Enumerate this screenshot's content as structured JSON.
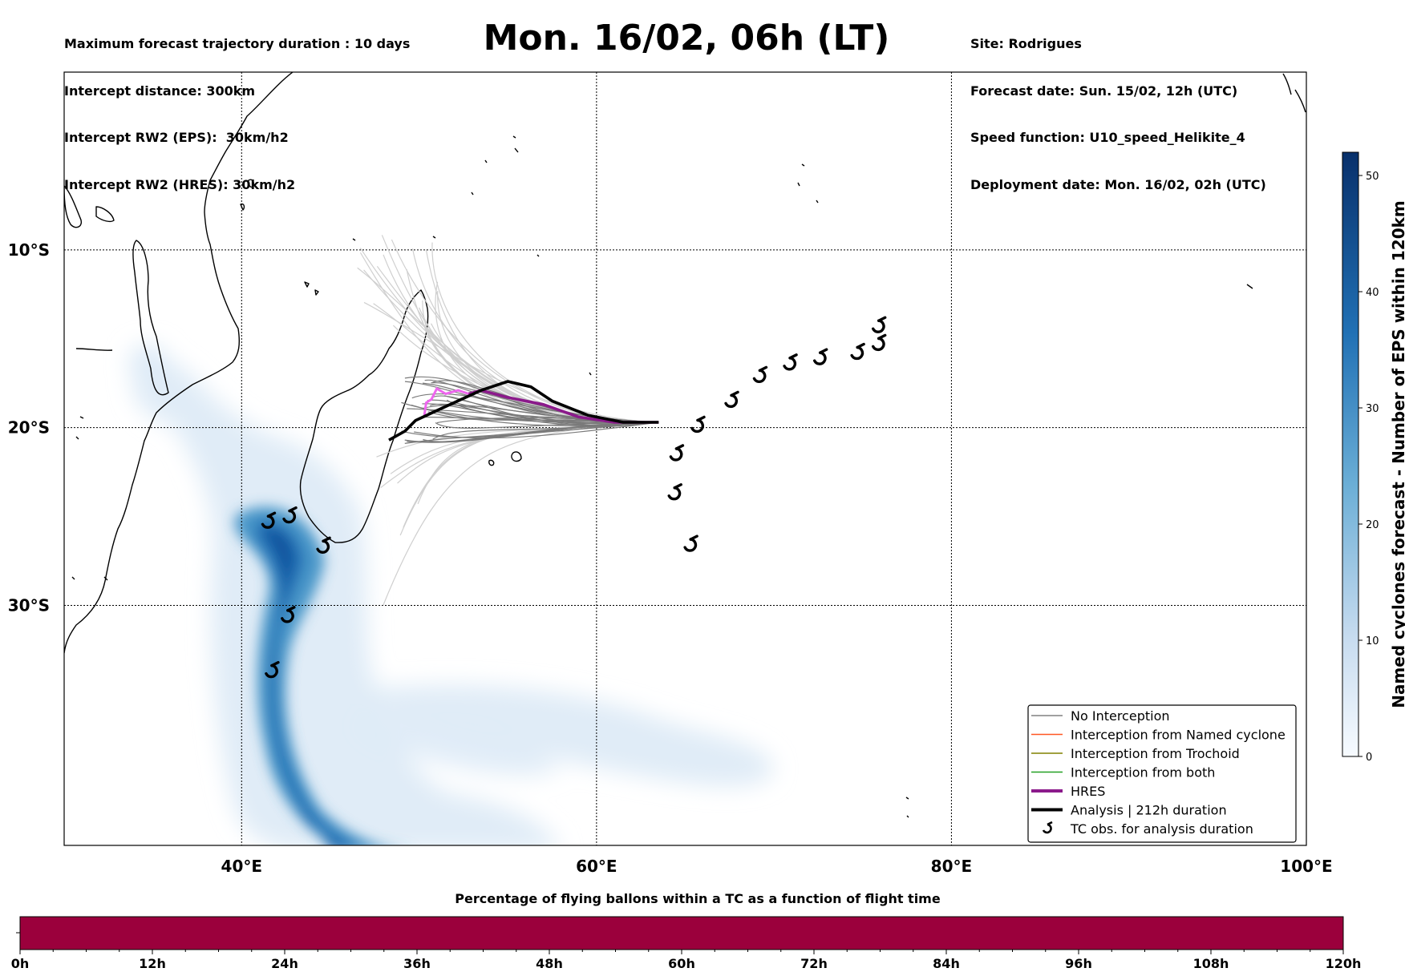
{
  "header": {
    "left": [
      "Maximum forecast trajectory duration : 10 days",
      "Intercept distance: 300km",
      "Intercept RW2 (EPS):  30km/h2",
      "Intercept RW2 (HRES): 30km/h2"
    ],
    "title": "Mon. 16/02, 06h (LT)",
    "right": [
      "Site: Rodrigues",
      "Forecast date: Sun. 15/02, 12h (UTC)",
      "Speed function: U10_speed_Helikite_4",
      "Deployment date: Mon. 16/02, 02h (UTC)"
    ]
  },
  "map": {
    "lon_range": [
      30,
      100
    ],
    "lat_range": [
      -43.5,
      0
    ],
    "lon_ticks": [
      {
        "value": 40,
        "label": "40°E"
      },
      {
        "value": 60,
        "label": "60°E"
      },
      {
        "value": 80,
        "label": "80°E"
      },
      {
        "value": 100,
        "label": "100°E"
      }
    ],
    "lat_ticks": [
      {
        "value": -10,
        "label": "10°S"
      },
      {
        "value": -20,
        "label": "20°S"
      },
      {
        "value": -30,
        "label": "30°S"
      }
    ],
    "grid": true,
    "colors": {
      "eps": "#7a7a7a",
      "eps_light": "#cfcfcf",
      "hres": "#8b1a8b",
      "hres_early": "#ee66ee",
      "analysis": "#000000",
      "density": "#08306b"
    }
  },
  "legend": {
    "placement": "bottom-right",
    "items": [
      {
        "label": "No Interception",
        "color": "#808080",
        "kind": "line"
      },
      {
        "label": "Interception from Named cyclone",
        "color": "#ff5722",
        "kind": "line"
      },
      {
        "label": "Interception from Trochoid",
        "color": "#808000",
        "kind": "line"
      },
      {
        "label": "Interception from both",
        "color": "#22a022",
        "kind": "line"
      },
      {
        "label": "HRES",
        "color": "#8b1a8b",
        "kind": "thick"
      },
      {
        "label": "Analysis | 212h duration",
        "color": "#000000",
        "kind": "thick"
      },
      {
        "label": "TC obs. for analysis duration",
        "color": "#000000",
        "kind": "marker"
      }
    ]
  },
  "tc_markers": [
    {
      "lon": 41.5,
      "lat": -25.3
    },
    {
      "lon": 42.7,
      "lat": -25.0
    },
    {
      "lon": 44.6,
      "lat": -26.7
    },
    {
      "lon": 42.6,
      "lat": -30.6
    },
    {
      "lon": 41.7,
      "lat": -33.7
    },
    {
      "lon": 65.3,
      "lat": -26.6
    },
    {
      "lon": 64.4,
      "lat": -23.7
    },
    {
      "lon": 64.5,
      "lat": -21.5
    },
    {
      "lon": 65.7,
      "lat": -19.9
    },
    {
      "lon": 67.6,
      "lat": -18.5
    },
    {
      "lon": 69.2,
      "lat": -17.1
    },
    {
      "lon": 70.9,
      "lat": -16.4
    },
    {
      "lon": 72.6,
      "lat": -16.1
    },
    {
      "lon": 74.7,
      "lat": -15.8
    },
    {
      "lon": 75.9,
      "lat": -15.3
    },
    {
      "lon": 75.9,
      "lat": -14.3
    }
  ],
  "trajectories": {
    "analysis": [
      [
        63.5,
        -19.7
      ],
      [
        61.5,
        -19.7
      ],
      [
        59.5,
        -19.3
      ],
      [
        57.5,
        -18.5
      ],
      [
        56.3,
        -17.7
      ],
      [
        55,
        -17.4
      ],
      [
        53.5,
        -17.9
      ],
      [
        51.3,
        -18.9
      ],
      [
        49.8,
        -19.6
      ],
      [
        49.2,
        -20.2
      ],
      [
        48.3,
        -20.7
      ]
    ],
    "hres": [
      [
        63.5,
        -19.7
      ],
      [
        61,
        -19.7
      ],
      [
        59,
        -19.4
      ],
      [
        57,
        -18.7
      ],
      [
        55,
        -18.3
      ],
      [
        53.5,
        -17.9
      ],
      [
        52.8,
        -18.1
      ]
    ],
    "hres_early": [
      [
        52.8,
        -18.1
      ],
      [
        52.2,
        -17.9
      ],
      [
        51.5,
        -18.1
      ],
      [
        51,
        -17.8
      ],
      [
        50.7,
        -18.4
      ],
      [
        50.4,
        -18.6
      ],
      [
        50.3,
        -19.3
      ]
    ]
  },
  "colorbar": {
    "label": "Named cyclones forecast - Number of EPS within 120km",
    "min": 0,
    "max": 52,
    "ticks": [
      "0",
      "10",
      "20",
      "30",
      "40",
      "50"
    ]
  },
  "flight_bar": {
    "title": "Percentage of flying ballons within a TC as a function of flight time",
    "color": "#9b003c",
    "ticks": [
      "0h",
      "12h",
      "24h",
      "36h",
      "48h",
      "60h",
      "72h",
      "84h",
      "96h",
      "108h",
      "120h"
    ]
  }
}
